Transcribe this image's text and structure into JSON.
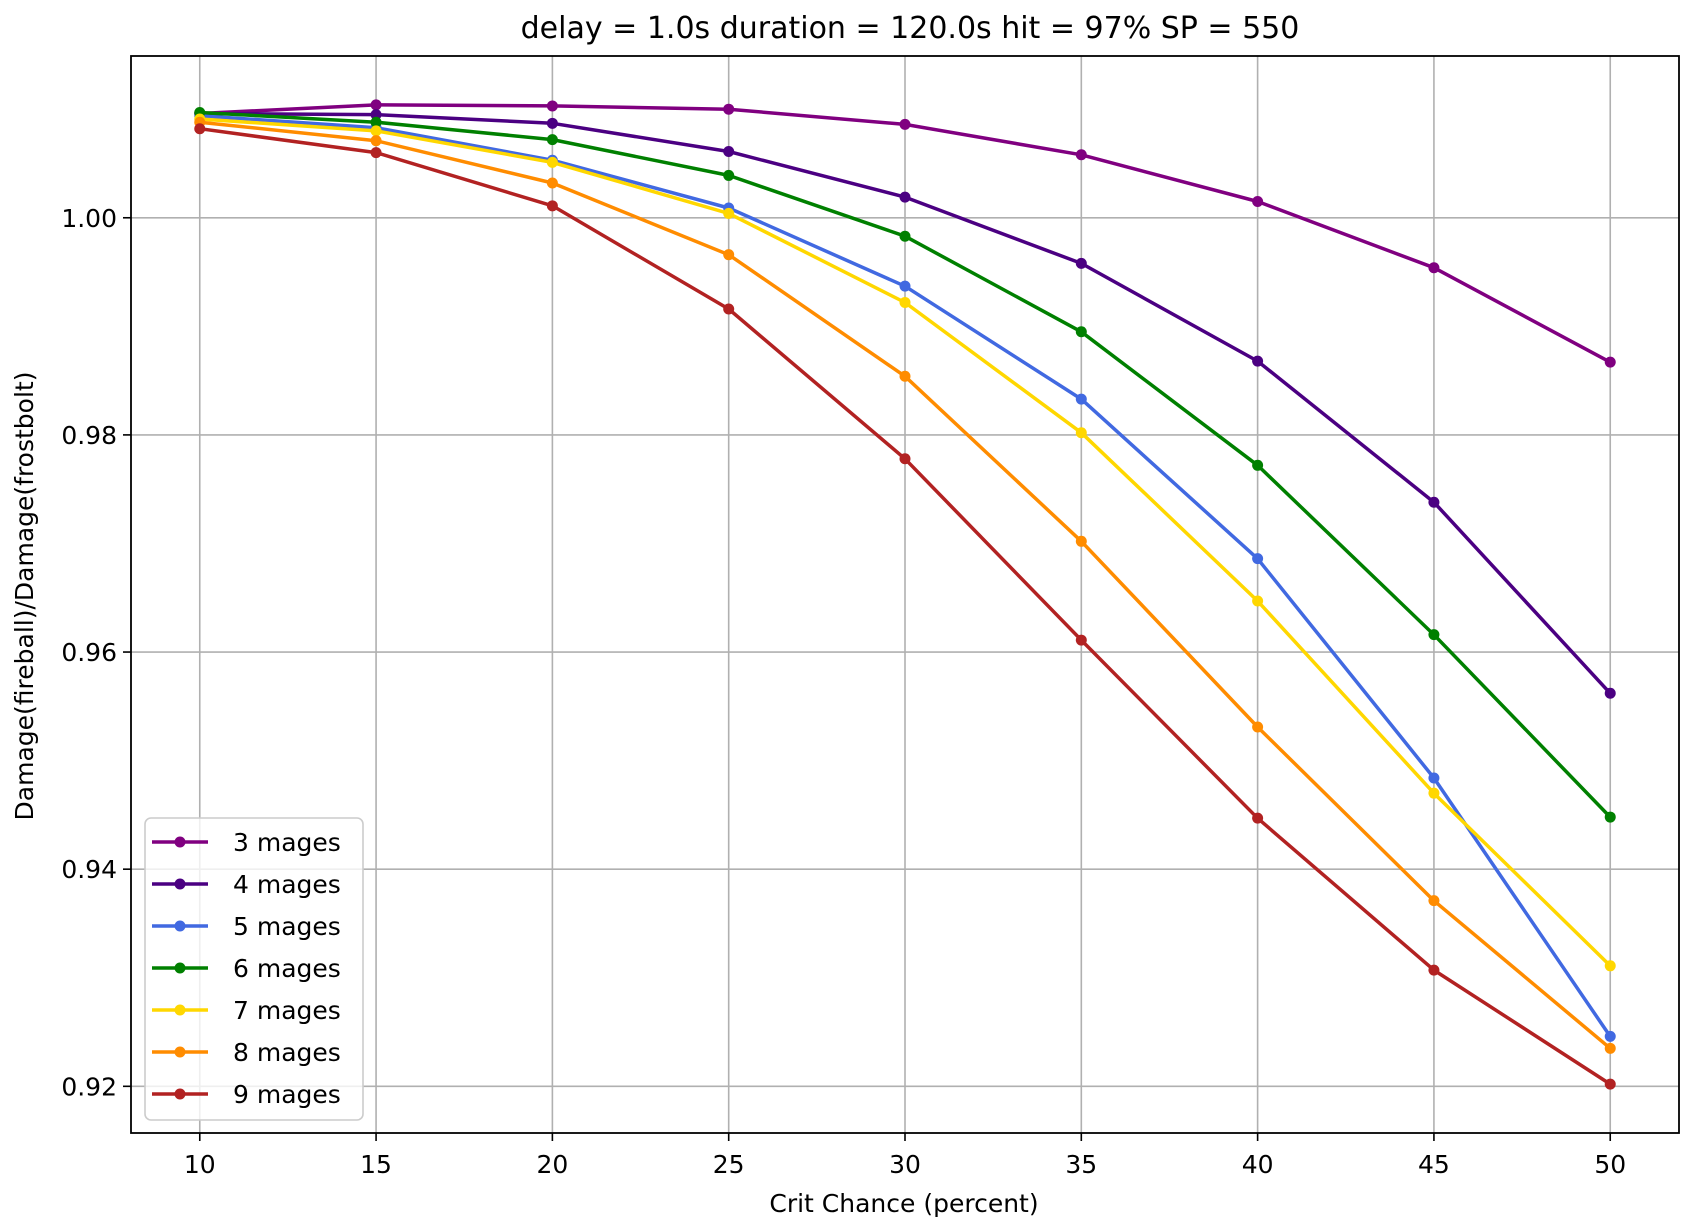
{
  "chart_data": {
    "type": "line",
    "title": "delay = 1.0s duration = 120.0s hit = 97% SP = 550",
    "xlabel": "Crit Chance (percent)",
    "ylabel": "Damage(fireball)/Damage(frostbolt)",
    "x": [
      10,
      15,
      20,
      25,
      30,
      35,
      40,
      45,
      50
    ],
    "xlim": [
      8.05,
      51.95
    ],
    "ylim": [
      0.9157,
      1.0149
    ],
    "xticks": [
      10,
      15,
      20,
      25,
      30,
      35,
      40,
      45,
      50
    ],
    "xtick_labels": [
      "10",
      "15",
      "20",
      "25",
      "30",
      "35",
      "40",
      "45",
      "50"
    ],
    "yticks": [
      0.92,
      0.94,
      0.96,
      0.98,
      1.0
    ],
    "ytick_labels": [
      "0.92",
      "0.94",
      "0.96",
      "0.98",
      "1.00"
    ],
    "grid": true,
    "legend_position": "lower-left",
    "series": [
      {
        "name": "3 mages",
        "color": "#800080",
        "values": [
          1.0096,
          1.0104,
          1.0103,
          1.01,
          1.0086,
          1.0058,
          1.0015,
          0.9954,
          0.9867
        ]
      },
      {
        "name": "4 mages",
        "color": "#4b0082",
        "values": [
          1.0096,
          1.0095,
          1.0087,
          1.0061,
          1.0019,
          0.9958,
          0.9868,
          0.9738,
          0.9562
        ]
      },
      {
        "name": "5 mages",
        "color": "#4169e1",
        "values": [
          1.0094,
          1.0083,
          1.0053,
          1.0009,
          0.9937,
          0.9833,
          0.9686,
          0.9484,
          0.9246
        ]
      },
      {
        "name": "6 mages",
        "color": "#008000",
        "values": [
          1.0097,
          1.0088,
          1.0072,
          1.0039,
          0.9983,
          0.9895,
          0.9772,
          0.9616,
          0.9448
        ]
      },
      {
        "name": "7 mages",
        "color": "#ffd700",
        "values": [
          1.0091,
          1.008,
          1.0051,
          1.0004,
          0.9922,
          0.9802,
          0.9647,
          0.947,
          0.9311
        ]
      },
      {
        "name": "8 mages",
        "color": "#ff8c00",
        "values": [
          1.0088,
          1.0071,
          1.0032,
          0.9966,
          0.9854,
          0.9702,
          0.9531,
          0.9371,
          0.9235
        ]
      },
      {
        "name": "9 mages",
        "color": "#b22222",
        "values": [
          1.0082,
          1.006,
          1.0011,
          0.9916,
          0.9778,
          0.9611,
          0.9447,
          0.9307,
          0.9202
        ]
      }
    ]
  }
}
